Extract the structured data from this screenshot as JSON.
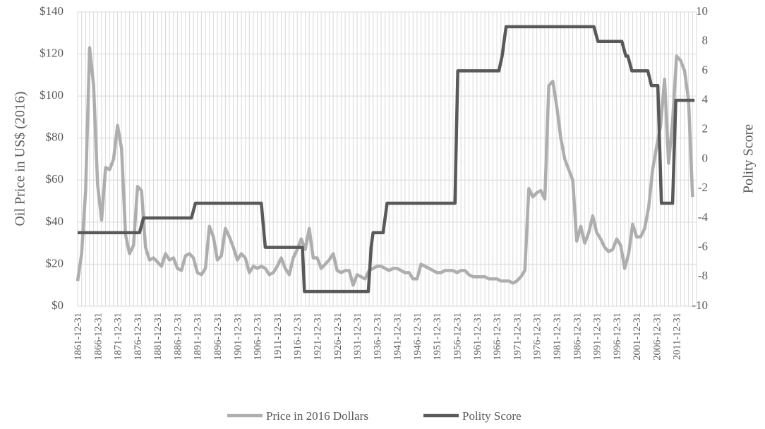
{
  "chart_data": {
    "type": "line",
    "xlabel": "",
    "y_left_label": "Oil Price in US$ (2016)",
    "y_right_label": "Polity Score",
    "y_left_range": [
      0,
      140
    ],
    "y_right_range": [
      -10,
      10
    ],
    "y_left_ticks": [
      "$0",
      "$20",
      "$40",
      "$60",
      "$80",
      "$100",
      "$120",
      "$140"
    ],
    "y_right_ticks": [
      "-10",
      "-8",
      "-6",
      "-4",
      "-2",
      "0",
      "2",
      "4",
      "6",
      "8",
      "10"
    ],
    "x_tick_labels": [
      "1861-12-31",
      "1866-12-31",
      "1871-12-31",
      "1876-12-31",
      "1881-12-31",
      "1886-12-31",
      "1891-12-31",
      "1896-12-31",
      "1901-12-31",
      "1906-12-31",
      "1911-12-31",
      "1916-12-31",
      "1921-12-31",
      "1926-12-31",
      "1931-12-31",
      "1936-12-31",
      "1941-12-31",
      "1946-12-31",
      "1951-12-31",
      "1956-12-31",
      "1961-12-31",
      "1966-12-31",
      "1971-12-31",
      "1976-12-31",
      "1981-12-31",
      "1986-12-31",
      "1991-12-31",
      "1996-12-31",
      "2001-12-31",
      "2006-12-31",
      "2011-12-31"
    ],
    "grid": true,
    "legend_position": "bottom",
    "series": [
      {
        "name": "Price in 2016 Dollars",
        "axis": "left",
        "color": "#aeaeae",
        "points": [
          [
            1861,
            12
          ],
          [
            1862,
            25
          ],
          [
            1863,
            55
          ],
          [
            1864,
            123
          ],
          [
            1865,
            105
          ],
          [
            1866,
            58
          ],
          [
            1867,
            41
          ],
          [
            1868,
            66
          ],
          [
            1869,
            65
          ],
          [
            1870,
            70
          ],
          [
            1871,
            86
          ],
          [
            1872,
            75
          ],
          [
            1873,
            34
          ],
          [
            1874,
            25
          ],
          [
            1875,
            29
          ],
          [
            1876,
            57
          ],
          [
            1877,
            55
          ],
          [
            1878,
            28
          ],
          [
            1879,
            22
          ],
          [
            1880,
            23
          ],
          [
            1881,
            21
          ],
          [
            1882,
            19
          ],
          [
            1883,
            25
          ],
          [
            1884,
            22
          ],
          [
            1885,
            23
          ],
          [
            1886,
            18
          ],
          [
            1887,
            17
          ],
          [
            1888,
            24
          ],
          [
            1889,
            25
          ],
          [
            1890,
            23
          ],
          [
            1891,
            16
          ],
          [
            1892,
            15
          ],
          [
            1893,
            18
          ],
          [
            1894,
            38
          ],
          [
            1895,
            33
          ],
          [
            1896,
            22
          ],
          [
            1897,
            24
          ],
          [
            1898,
            37
          ],
          [
            1899,
            33
          ],
          [
            1900,
            28
          ],
          [
            1901,
            22
          ],
          [
            1902,
            25
          ],
          [
            1903,
            23
          ],
          [
            1904,
            16
          ],
          [
            1905,
            19
          ],
          [
            1906,
            18
          ],
          [
            1907,
            19
          ],
          [
            1908,
            18
          ],
          [
            1909,
            15
          ],
          [
            1910,
            16
          ],
          [
            1911,
            19
          ],
          [
            1912,
            23
          ],
          [
            1913,
            18
          ],
          [
            1914,
            15
          ],
          [
            1915,
            23
          ],
          [
            1916,
            27
          ],
          [
            1917,
            32
          ],
          [
            1918,
            27
          ],
          [
            1919,
            37
          ],
          [
            1920,
            23
          ],
          [
            1921,
            23
          ],
          [
            1922,
            18
          ],
          [
            1923,
            20
          ],
          [
            1924,
            22
          ],
          [
            1925,
            25
          ],
          [
            1926,
            17
          ],
          [
            1927,
            16
          ],
          [
            1928,
            17
          ],
          [
            1929,
            17
          ],
          [
            1930,
            10
          ],
          [
            1931,
            15
          ],
          [
            1932,
            14
          ],
          [
            1933,
            13
          ],
          [
            1934,
            17
          ],
          [
            1935,
            18
          ],
          [
            1936,
            19
          ],
          [
            1937,
            19
          ],
          [
            1938,
            18
          ],
          [
            1939,
            17
          ],
          [
            1940,
            18
          ],
          [
            1941,
            18
          ],
          [
            1942,
            17
          ],
          [
            1943,
            16
          ],
          [
            1944,
            16
          ],
          [
            1945,
            13
          ],
          [
            1946,
            13
          ],
          [
            1947,
            20
          ],
          [
            1948,
            19
          ],
          [
            1949,
            18
          ],
          [
            1950,
            17
          ],
          [
            1951,
            16
          ],
          [
            1952,
            16
          ],
          [
            1953,
            17
          ],
          [
            1954,
            17
          ],
          [
            1955,
            17
          ],
          [
            1956,
            16
          ],
          [
            1957,
            17
          ],
          [
            1958,
            17
          ],
          [
            1959,
            15
          ],
          [
            1960,
            14
          ],
          [
            1961,
            14
          ],
          [
            1962,
            14
          ],
          [
            1963,
            14
          ],
          [
            1964,
            13
          ],
          [
            1965,
            13
          ],
          [
            1966,
            13
          ],
          [
            1967,
            12
          ],
          [
            1968,
            12
          ],
          [
            1969,
            12
          ],
          [
            1970,
            11
          ],
          [
            1971,
            12
          ],
          [
            1972,
            14
          ],
          [
            1973,
            17
          ],
          [
            1974,
            56
          ],
          [
            1975,
            52
          ],
          [
            1976,
            54
          ],
          [
            1977,
            55
          ],
          [
            1978,
            51
          ],
          [
            1979,
            105
          ],
          [
            1980,
            107
          ],
          [
            1981,
            95
          ],
          [
            1982,
            80
          ],
          [
            1983,
            70
          ],
          [
            1984,
            65
          ],
          [
            1985,
            60
          ],
          [
            1986,
            31
          ],
          [
            1987,
            38
          ],
          [
            1988,
            30
          ],
          [
            1989,
            35
          ],
          [
            1990,
            43
          ],
          [
            1991,
            35
          ],
          [
            1992,
            32
          ],
          [
            1993,
            28
          ],
          [
            1994,
            26
          ],
          [
            1995,
            27
          ],
          [
            1996,
            32
          ],
          [
            1997,
            29
          ],
          [
            1998,
            18
          ],
          [
            1999,
            25
          ],
          [
            2000,
            39
          ],
          [
            2001,
            33
          ],
          [
            2002,
            33
          ],
          [
            2003,
            37
          ],
          [
            2004,
            47
          ],
          [
            2005,
            65
          ],
          [
            2006,
            76
          ],
          [
            2007,
            86
          ],
          [
            2008,
            108
          ],
          [
            2009,
            68
          ],
          [
            2010,
            88
          ],
          [
            2011,
            119
          ],
          [
            2012,
            117
          ],
          [
            2013,
            112
          ],
          [
            2014,
            98
          ],
          [
            2015,
            52
          ]
        ]
      },
      {
        "name": "Polity Score",
        "axis": "right",
        "color": "#595959",
        "points": [
          [
            1861,
            -5
          ],
          [
            1876.5,
            -5
          ],
          [
            1877.5,
            -4
          ],
          [
            1889.5,
            -4
          ],
          [
            1890.5,
            -3
          ],
          [
            1907,
            -3
          ],
          [
            1908,
            -6
          ],
          [
            1917.3,
            -6
          ],
          [
            1917.8,
            -9
          ],
          [
            1933.8,
            -9
          ],
          [
            1934.5,
            -6
          ],
          [
            1935,
            -5
          ],
          [
            1937.5,
            -5
          ],
          [
            1938.5,
            -3
          ],
          [
            1955.5,
            -3
          ],
          [
            1956.2,
            6
          ],
          [
            1966.5,
            6
          ],
          [
            1967.3,
            7
          ],
          [
            1968.3,
            9
          ],
          [
            1990.3,
            9
          ],
          [
            1991.3,
            8
          ],
          [
            1997.3,
            8
          ],
          [
            1998.3,
            7
          ],
          [
            1998.8,
            7
          ],
          [
            1999.8,
            6
          ],
          [
            2003.8,
            6
          ],
          [
            2004.7,
            5
          ],
          [
            2006.3,
            5
          ],
          [
            2007.2,
            -3
          ],
          [
            2010,
            -3
          ],
          [
            2010.8,
            4
          ],
          [
            2015.5,
            4
          ]
        ]
      }
    ]
  }
}
